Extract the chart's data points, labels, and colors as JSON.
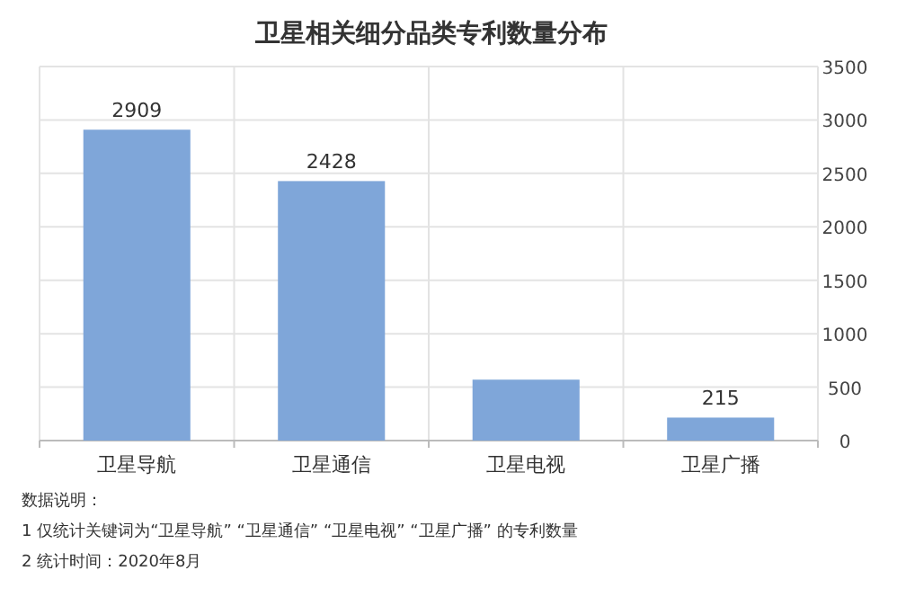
{
  "chart_data": {
    "type": "bar",
    "title": "卫星相关细分品类专利数量分布",
    "categories": [
      "卫星导航",
      "卫星通信",
      "卫星电视",
      "卫星广播"
    ],
    "values": [
      2909,
      2428,
      570,
      215
    ],
    "value_labels": [
      "2909",
      "2428",
      null,
      "215"
    ],
    "color": "#7fa6d9",
    "ylim": [
      0,
      3500
    ],
    "yticks": [
      0,
      500,
      1000,
      1500,
      2000,
      2500,
      3000,
      3500
    ],
    "grid": true,
    "annotations": [
      "数据说明：",
      "1 仅统计关键词为“卫星导航” “卫星通信” “卫星电视” “卫星广播” 的专利数量",
      "2 统计时间：2020年8月"
    ]
  }
}
